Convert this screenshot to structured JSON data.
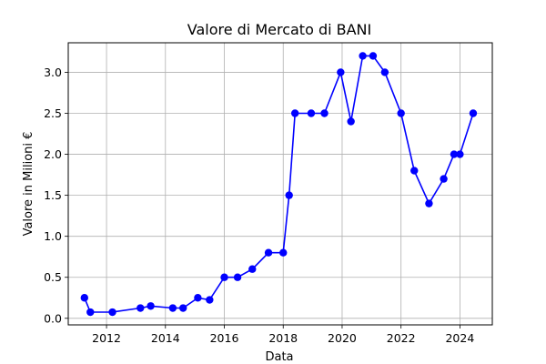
{
  "chart_data": {
    "type": "line",
    "title": "Valore di Mercato di BANI",
    "xlabel": "Data",
    "ylabel": "Valore in Milioni €",
    "xlim": [
      2010.7,
      2025.1
    ],
    "ylim": [
      -0.08,
      3.36
    ],
    "xticks": [
      2012,
      2014,
      2016,
      2018,
      2020,
      2022,
      2024
    ],
    "xtick_labels": [
      "2012",
      "2014",
      "2016",
      "2018",
      "2020",
      "2022",
      "2024"
    ],
    "yticks": [
      0.0,
      0.5,
      1.0,
      1.5,
      2.0,
      2.5,
      3.0
    ],
    "ytick_labels": [
      "0.0",
      "0.5",
      "1.0",
      "1.5",
      "2.0",
      "2.5",
      "3.0"
    ],
    "grid": true,
    "colors": {
      "series": "#0000ff",
      "grid": "#b0b0b0",
      "axes": "#000000"
    },
    "series": [
      {
        "x": [
          2011.25,
          2011.45,
          2012.2,
          2013.15,
          2013.5,
          2014.25,
          2014.6,
          2015.1,
          2015.5,
          2016.0,
          2016.45,
          2016.95,
          2017.5,
          2018.0,
          2018.2,
          2018.4,
          2018.95,
          2019.4,
          2019.95,
          2020.3,
          2020.7,
          2021.05,
          2021.45,
          2022.0,
          2022.45,
          2022.95,
          2023.45,
          2023.8,
          2024.0,
          2024.45
        ],
        "y": [
          0.25,
          0.075,
          0.075,
          0.125,
          0.15,
          0.125,
          0.125,
          0.25,
          0.225,
          0.5,
          0.5,
          0.6,
          0.8,
          0.8,
          1.5,
          2.5,
          2.5,
          2.5,
          3.0,
          2.4,
          3.2,
          3.2,
          3.0,
          2.5,
          1.8,
          1.4,
          1.7,
          2.0,
          2.0,
          2.5
        ]
      }
    ]
  }
}
